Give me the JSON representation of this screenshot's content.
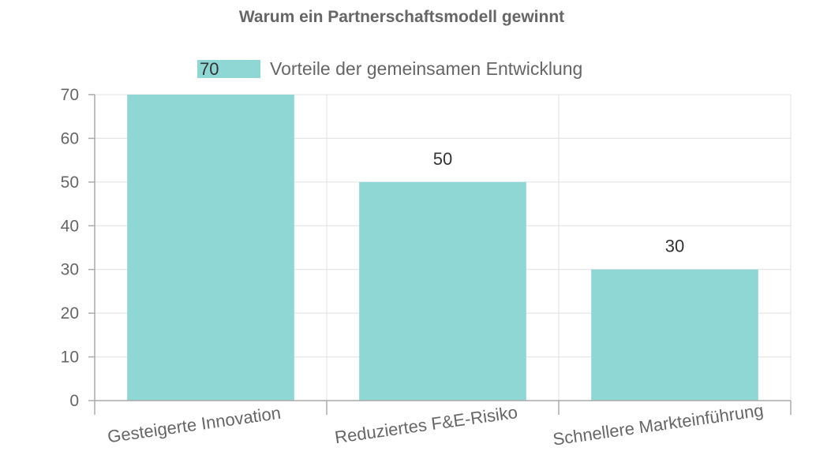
{
  "chart_data": {
    "type": "bar",
    "title": "Warum ein Partnerschaftsmodell gewinnt",
    "categories": [
      "Gesteigerte Innovation",
      "Reduziertes F&E-Risiko",
      "Schnellere Markteinführung"
    ],
    "series": [
      {
        "name": "Vorteile der gemeinsamen Entwicklung",
        "values": [
          70,
          50,
          30
        ],
        "color": "#8fd7d5"
      }
    ],
    "ylim": [
      0,
      70
    ],
    "yticks": [
      0,
      10,
      20,
      30,
      40,
      50,
      60,
      70
    ],
    "grid": true,
    "legend_position": "top",
    "data_labels": true
  }
}
